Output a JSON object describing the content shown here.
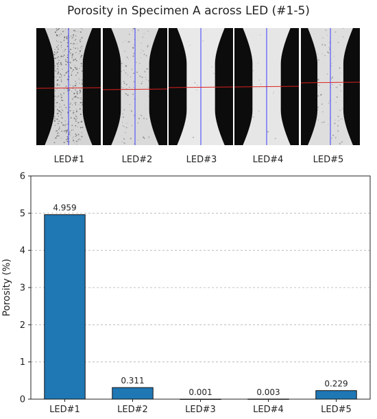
{
  "title": "Porosity in Specimen A across LED (#1-5)",
  "images": [
    {
      "label": "LED#1",
      "background": "#d4d4d4",
      "speckle": "#555555",
      "speckle_density": 0.9
    },
    {
      "label": "LED#2",
      "background": "#dadada",
      "speckle": "#777777",
      "speckle_density": 0.25
    },
    {
      "label": "LED#3",
      "background": "#e9e9e9",
      "speckle": "#999999",
      "speckle_density": 0.02
    },
    {
      "label": "LED#4",
      "background": "#e6e6e6",
      "speckle": "#999999",
      "speckle_density": 0.03
    },
    {
      "label": "LED#5",
      "background": "#dedede",
      "speckle": "#888888",
      "speckle_density": 0.18
    }
  ],
  "colors": {
    "bar": "#1f77b4",
    "bar_edge": "#111111",
    "vertical_line": "#3a3aff",
    "horizontal_line": "#e02020",
    "specimen_black": "#0c0c0c"
  },
  "chart_data": {
    "type": "bar",
    "categories": [
      "LED#1",
      "LED#2",
      "LED#3",
      "LED#4",
      "LED#5"
    ],
    "values": [
      4.959,
      0.311,
      0.001,
      0.003,
      0.229
    ],
    "value_labels": [
      "4.959",
      "0.311",
      "0.001",
      "0.003",
      "0.229"
    ],
    "ylabel": "Porosity (%)",
    "ylim": [
      0,
      6
    ],
    "yticks": [
      0,
      1,
      2,
      3,
      4,
      5,
      6
    ],
    "grid": "y-dashed"
  }
}
